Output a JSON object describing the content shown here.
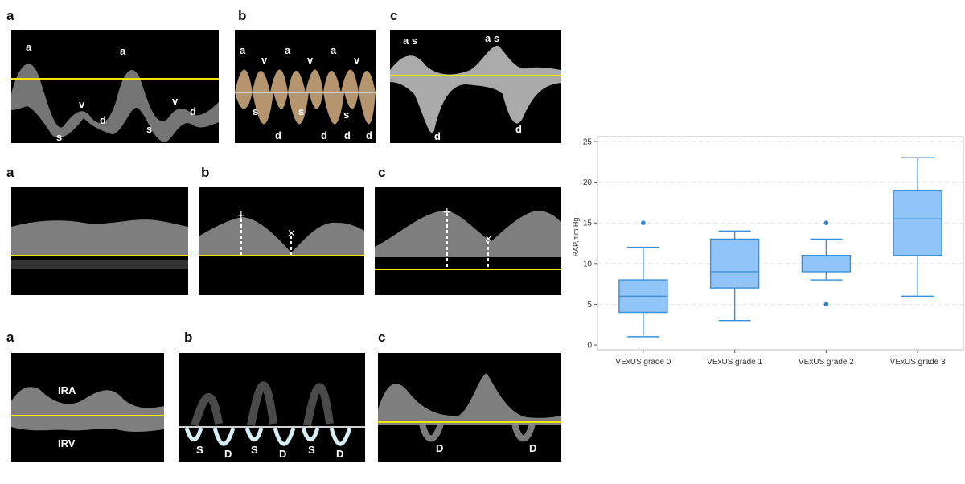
{
  "rows": [
    {
      "panels": [
        {
          "letter": "a",
          "labels": [
            "a",
            "a",
            "s",
            "v",
            "d",
            "s",
            "v",
            "d"
          ]
        },
        {
          "letter": "b",
          "labels": [
            "a",
            "v",
            "a",
            "v",
            "a",
            "v",
            "s",
            "s",
            "s",
            "d",
            "d",
            "d",
            "d"
          ]
        },
        {
          "letter": "c",
          "labels": [
            "a s",
            "a s",
            "d",
            "d"
          ]
        }
      ]
    },
    {
      "panels": [
        {
          "letter": "a",
          "labels": []
        },
        {
          "letter": "b",
          "labels": []
        },
        {
          "letter": "c",
          "labels": []
        }
      ]
    },
    {
      "panels": [
        {
          "letter": "a",
          "labels": [
            "IRA",
            "IRV"
          ]
        },
        {
          "letter": "b",
          "labels": [
            "S",
            "D",
            "S",
            "D",
            "S",
            "D"
          ]
        },
        {
          "letter": "c",
          "labels": [
            "D",
            "D"
          ]
        }
      ]
    }
  ],
  "colors": {
    "baseline": "#f2e600",
    "box_fill": "#92c5f7",
    "box_stroke": "#3b8fd6",
    "outlier": "#2f86d6",
    "grid": "#e3e3e3"
  },
  "chart_data": {
    "type": "box",
    "ylabel": "RAP,mm Hg",
    "xlabel": "",
    "ylim": [
      0,
      25
    ],
    "yticks": [
      0,
      5,
      10,
      15,
      20,
      25
    ],
    "grid": true,
    "categories": [
      "VExUS grade 0",
      "VExUS grade 1",
      "VExUS grade 2",
      "VExUS grade 3"
    ],
    "boxes": [
      {
        "whisker_low": 1,
        "q1": 4,
        "median": 6,
        "q3": 8,
        "whisker_high": 12,
        "outliers": [
          15
        ]
      },
      {
        "whisker_low": 3,
        "q1": 7,
        "median": 9,
        "q3": 13,
        "whisker_high": 14,
        "outliers": []
      },
      {
        "whisker_low": 8,
        "q1": 9,
        "median": 11,
        "q3": 11,
        "whisker_high": 13,
        "outliers": [
          15,
          5
        ]
      },
      {
        "whisker_low": 6,
        "q1": 11,
        "median": 15.5,
        "q3": 19,
        "whisker_high": 23,
        "outliers": []
      }
    ]
  }
}
